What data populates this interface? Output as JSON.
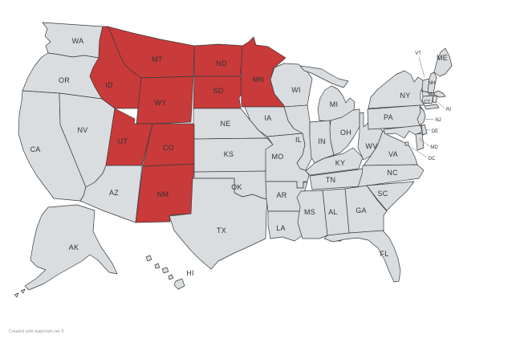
{
  "map": {
    "caption": "Created with mapchart.net ©",
    "background": "#ffffff",
    "default_fill": "#d9dde0",
    "selected_fill": "#c93a3a",
    "stroke_color": "#3a3a3a",
    "label_color": "#333333",
    "selected_states": [
      "MT",
      "ND",
      "MN",
      "ID",
      "WY",
      "SD",
      "UT",
      "CO",
      "NM"
    ],
    "states": [
      {
        "abbr": "WA",
        "label": [
          97,
          51
        ],
        "shapes": [
          "53,28 128,33 124,50 123,72 105,69 90,71 74,68 60,66 57,57 63,52 56,45 59,36"
        ]
      },
      {
        "abbr": "OR",
        "label": [
          80,
          100
        ],
        "shapes": [
          "60,66 74,68 90,71 105,69 123,72 116,84 112,95 118,108 127,123 74,116 28,113 35,96 43,82 52,71"
        ]
      },
      {
        "abbr": "CA",
        "label": [
          44,
          186
        ],
        "shapes": [
          "28,113 74,116 75,155 107,233 104,244 100,250 67,247 58,235 46,219 37,204 29,187 23,166 24,142 27,126"
        ]
      },
      {
        "abbr": "NV",
        "label": [
          103,
          162
        ],
        "shapes": [
          "74,116 127,123 143,135 132,206 128,216 118,227 107,233 75,155"
        ]
      },
      {
        "abbr": "ID",
        "label": [
          136,
          106
        ],
        "shapes": [
          "128,33 134,33 138,40 144,55 150,70 156,81 166,90 176,97 175,120 173,135 143,135 127,123 118,108 112,95 116,84 123,72 124,50"
        ]
      },
      {
        "abbr": "MT",
        "label": [
          196,
          74
        ],
        "shapes": [
          "134,33 165,41 200,49 242,57 241,95 210,96 176,97 166,90 156,81 150,70 144,55 138,40"
        ]
      },
      {
        "abbr": "WY",
        "label": [
          200,
          128
        ],
        "shapes": [
          "176,97 210,96 241,95 238,152 190,154 170,154"
        ]
      },
      {
        "abbr": "UT",
        "label": [
          153,
          176
        ],
        "shapes": [
          "143,135 168,148 167,154 190,154 177,206 132,206"
        ]
      },
      {
        "abbr": "CO",
        "label": [
          210,
          184
        ],
        "shapes": [
          "190,154 242,154 242,204 178,207"
        ]
      },
      {
        "abbr": "AZ",
        "label": [
          142,
          240
        ],
        "shapes": [
          "132,206 177,206 169,277 128,262 100,250 104,244 107,233 118,227 128,216"
        ]
      },
      {
        "abbr": "NM",
        "label": [
          203,
          242
        ],
        "shapes": [
          "178,207 242,204 238,266 211,268 212,276 169,277"
        ]
      },
      {
        "abbr": "ND",
        "label": [
          276,
          79
        ],
        "shapes": [
          "242,57 272,55 304,57 299,95 242,95"
        ]
      },
      {
        "abbr": "SD",
        "label": [
          272,
          113
        ],
        "shapes": [
          "242,95 299,95 303,112 298,122 300,135 241,135"
        ]
      },
      {
        "abbr": "NE",
        "label": [
          281,
          154
        ],
        "shapes": [
          "241,135 300,135 312,150 322,162 333,172 242,173 242,155 241,155"
        ]
      },
      {
        "abbr": "KS",
        "label": [
          285,
          192
        ],
        "shapes": [
          "242,173 333,172 340,180 332,186 331,214 242,214"
        ]
      },
      {
        "abbr": "OK",
        "label": [
          295,
          233
        ],
        "shapes": [
          "242,214 331,213 332,248 325,246 315,242 302,245 292,240 292,222 242,222"
        ]
      },
      {
        "abbr": "TX",
        "label": [
          276,
          287
        ],
        "shapes": [
          "240,222 292,222 292,240 302,245 315,242 325,246 332,248 333,249 332,263 331,297 312,306 292,315 272,325 263,335 249,323 237,311 227,299 217,287 211,269 238,266"
        ]
      },
      {
        "abbr": "MN",
        "label": [
          322,
          99
        ],
        "shapes": [
          "302,57 310,52 316,46 319,56 334,58 356,72 341,85 337,99 342,117 352,129 355,133 301,133 300,95"
        ]
      },
      {
        "abbr": "IA",
        "label": [
          334,
          147
        ],
        "shapes": [
          "305,133 354,133 359,150 366,160 377,166 333,170 322,162 312,150"
        ]
      },
      {
        "abbr": "MO",
        "label": [
          346,
          195
        ],
        "shapes": [
          "333,170 377,166 380,180 377,193 370,203 374,210 381,212 385,218 383,226 378,226 378,234 370,234 370,226 331,226 331,186 340,180"
        ]
      },
      {
        "abbr": "AR",
        "label": [
          351,
          243
        ],
        "shapes": [
          "331,226 370,226 370,234 378,234 378,227 383,227 379,240 375,252 378,263 334,263 332,248"
        ]
      },
      {
        "abbr": "LA",
        "label": [
          350,
          284
        ],
        "shapes": [
          "334,263 378,263 382,274 390,282 396,289 388,287 391,296 377,293 367,300 352,295 337,297 334,281"
        ]
      },
      {
        "abbr": "WI",
        "label": [
          369,
          112
        ],
        "shapes": [
          "342,84 354,79 372,80 382,88 389,98 386,114 383,131 355,133 352,129 342,117 337,99"
        ]
      },
      {
        "abbr": "IL",
        "label": [
          372,
          174
        ],
        "shapes": [
          "354,133 383,131 386,150 386,170 391,183 389,196 381,212 374,210 370,203 377,193 380,180 377,166 366,160 359,150"
        ]
      },
      {
        "abbr": "MI",
        "label": [
          416,
          130
        ],
        "shapes": [
          "374,82 389,84 401,86 411,92 422,98 434,101 428,109 414,104 400,97 388,91 379,88",
          "398,150 396,136 399,122 405,112 413,107 421,111 427,119 431,128 436,122 442,127 441,137 435,143 433,150 412,151"
        ]
      },
      {
        "abbr": "IN",
        "label": [
          401,
          176
        ],
        "shapes": [
          "386,152 411,150 412,175 416,193 404,197 392,203 388,196 386,172"
        ]
      },
      {
        "abbr": "OH",
        "label": [
          431,
          165
        ],
        "shapes": [
          "412,150 426,146 440,137 448,136 448,158 441,170 433,182 424,190 416,193 412,175 411,160"
        ]
      },
      {
        "abbr": "KY",
        "label": [
          424,
          203
        ],
        "shapes": [
          "381,213 392,203 404,197 416,194 428,191 440,184 452,196 447,210 386,218"
        ]
      },
      {
        "abbr": "TN",
        "label": [
          412,
          224
        ],
        "shapes": [
          "386,219 447,211 467,206 464,231 389,236"
        ]
      },
      {
        "abbr": "WV",
        "label": [
          463,
          182
        ],
        "shapes": [
          "448,141 453,140 453,158 461,151 468,156 477,163 470,182 462,194 453,199 446,184 448,164"
        ]
      },
      {
        "abbr": "VA",
        "label": [
          490,
          192
        ],
        "shapes": [
          "453,206 462,194 470,182 477,163 483,168 492,172 501,176 509,181 514,189 518,198 520,205"
        ]
      },
      {
        "abbr": "NC",
        "label": [
          489,
          215
        ],
        "shapes": [
          "452,206 520,205 528,212 522,222 458,231 446,233 451,217"
        ]
      },
      {
        "abbr": "SC",
        "label": [
          477,
          241
        ],
        "shapes": [
          "457,231 516,226 507,238 494,250 482,262 470,248"
        ]
      },
      {
        "abbr": "GA",
        "label": [
          450,
          262
        ],
        "shapes": [
          "430,235 457,231 470,249 482,263 478,268 478,290 435,291"
        ]
      },
      {
        "abbr": "AL",
        "label": [
          415,
          264
        ],
        "shapes": [
          "402,237 430,235 435,290 427,292 425,300 411,300 408,293 405,265"
        ]
      },
      {
        "abbr": "MS",
        "label": [
          386,
          264
        ],
        "shapes": [
          "375,238 402,237 405,265 408,293 398,297 377,297 371,277 374,257 370,246"
        ]
      },
      {
        "abbr": "FL",
        "label": [
          479,
          316
        ],
        "shapes": [
          "404,297 408,293 435,290 477,287 485,296 491,308 496,322 499,337 497,350 491,351 485,338 479,323 471,309 459,299 445,296 429,298 415,301"
        ]
      },
      {
        "abbr": "PA",
        "label": [
          484,
          146
        ],
        "shapes": [
          "458,136 523,131 528,138 525,157 459,161"
        ]
      },
      {
        "abbr": "NY",
        "label": [
          505,
          119
        ],
        "shapes": [
          "459,135 462,121 471,111 482,102 493,93 504,88 512,93 516,102 521,96 527,100 527,107 524,115 524,124 529,131 523,131",
          "529,132 544,130 547,134 531,136"
        ]
      },
      {
        "abbr": "VT",
        "label": [
          521,
          66
        ],
        "small": true,
        "leader": [
          522,
          71,
          529,
          96
        ],
        "shapes": [
          "527,100 535,98 533,115 526,113"
        ]
      },
      {
        "abbr": "NH",
        "label": [
          538,
          103
        ],
        "small": true,
        "shapes": [
          "535,98 537,92 541,90 544,96 540,116 533,115"
        ]
      },
      {
        "abbr": "ME",
        "label": [
          551,
          72
        ],
        "shapes": [
          "541,90 544,78 549,65 555,60 560,70 563,82 555,92 548,95"
        ]
      },
      {
        "abbr": "MA",
        "label": [
          538,
          117
        ],
        "small": true,
        "shapes": [
          "526,113 533,115 540,116 546,113 552,116 555,120 548,121 543,119 527,120"
        ]
      },
      {
        "abbr": "CT",
        "label": [
          532,
          127
        ],
        "small": true,
        "shapes": [
          "527,120 540,119 538,129 526,128"
        ]
      },
      {
        "abbr": "RI",
        "label": [
          559,
          136
        ],
        "small": true,
        "leader": [
          554,
          135,
          544,
          126
        ],
        "shapes": [
          "540,119 545,120 543,128 539,127"
        ]
      },
      {
        "abbr": "NJ",
        "label": [
          546,
          149
        ],
        "small": true,
        "leader": [
          541,
          149,
          529,
          148
        ],
        "shapes": [
          "523,133 528,138 530,144 528,152 523,156 520,148 524,140"
        ]
      },
      {
        "abbr": "DE",
        "label": [
          542,
          163
        ],
        "small": true,
        "leader": [
          536,
          162,
          530,
          161
        ],
        "shapes": [
          "525,157 529,155 532,166 527,168"
        ]
      },
      {
        "abbr": "MD",
        "label": [
          541,
          183
        ],
        "small": true,
        "leader": [
          535,
          182,
          522,
          172
        ],
        "shapes": [
          "478,161 524,156 526,164 518,168 510,163 504,172 493,166 480,167",
          "518,167 526,166 528,184 520,187"
        ]
      },
      {
        "abbr": "DC",
        "label": [
          538,
          197
        ],
        "small": true,
        "leader": [
          532,
          196,
          509,
          181
        ],
        "shapes": [
          "505,177 509,177 509,181 505,181"
        ]
      },
      {
        "abbr": "AK",
        "label": [
          92,
          308
        ],
        "shapes": [
          "60,258 96,255 118,262 116,288 125,306 140,328 146,341 136,339 122,324 112,317 102,325 88,333 72,342 55,353 36,361 31,356 46,346 57,336 46,332 38,324 41,305 46,283 52,268",
          "26,362 31,360 29,365",
          "18,367 23,365 21,370"
        ]
      },
      {
        "abbr": "HI",
        "label": [
          237,
          340
        ],
        "shapes": [
          "182,320 187,318 189,323 184,325",
          "193,330 197,328 199,333 194,334",
          "202,335 208,333 210,338 204,340",
          "210,344 214,342 216,346 211,348",
          "219,350 227,347 230,356 222,360 217,355"
        ]
      }
    ]
  }
}
